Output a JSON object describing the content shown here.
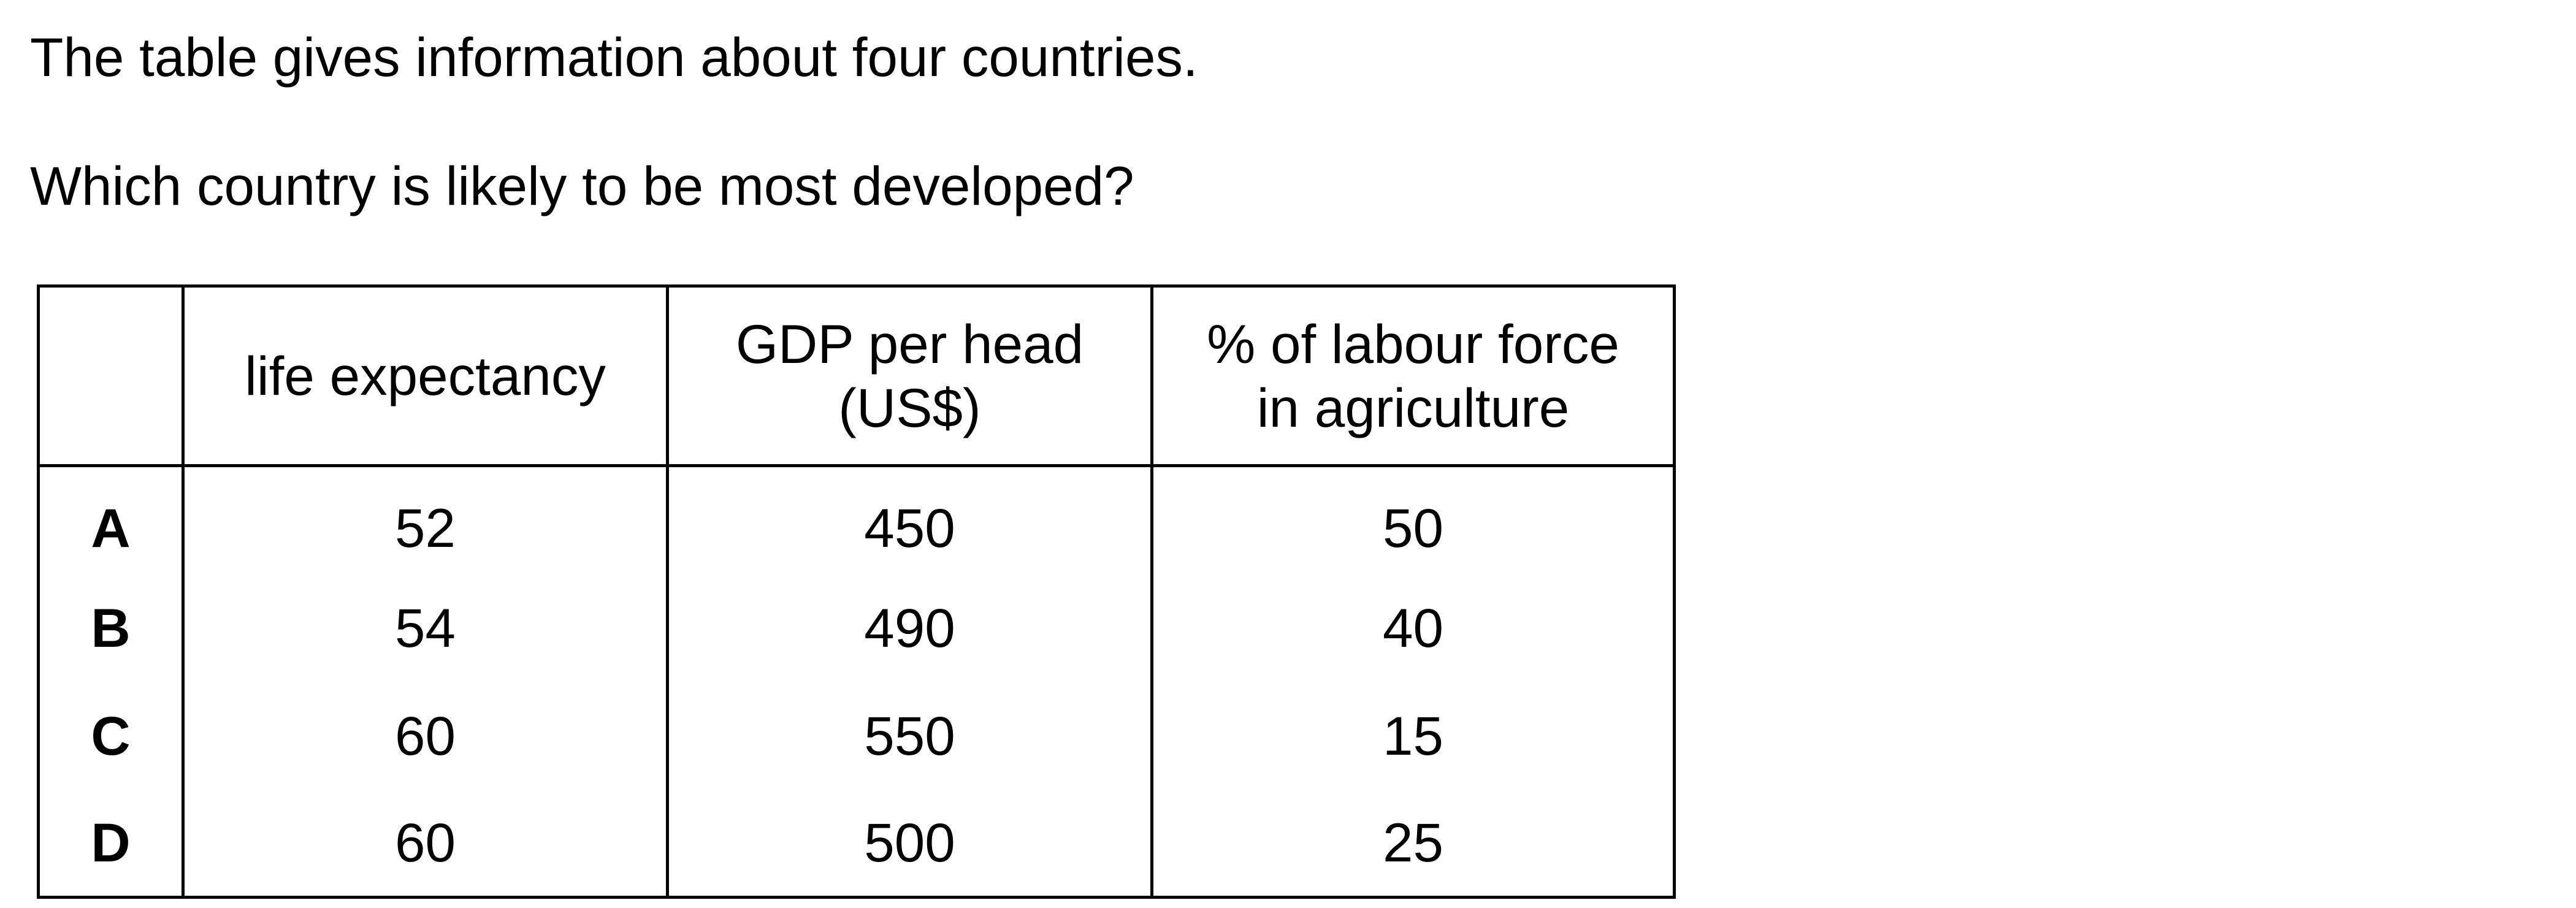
{
  "intro": "The table gives information about four countries.",
  "question": "Which country is likely to be most developed?",
  "table": {
    "headers": [
      "",
      "life expectancy",
      "GDP per head",
      "% of labour force"
    ],
    "headers_line2": [
      "",
      "",
      "(US$)",
      "in agriculture"
    ],
    "rows": [
      {
        "label": "A",
        "life": "52",
        "gdp": "450",
        "labour": "50"
      },
      {
        "label": "B",
        "life": "54",
        "gdp": "490",
        "labour": "40"
      },
      {
        "label": "C",
        "life": "60",
        "gdp": "550",
        "labour": "15"
      },
      {
        "label": "D",
        "life": "60",
        "gdp": "500",
        "labour": "25"
      }
    ]
  }
}
